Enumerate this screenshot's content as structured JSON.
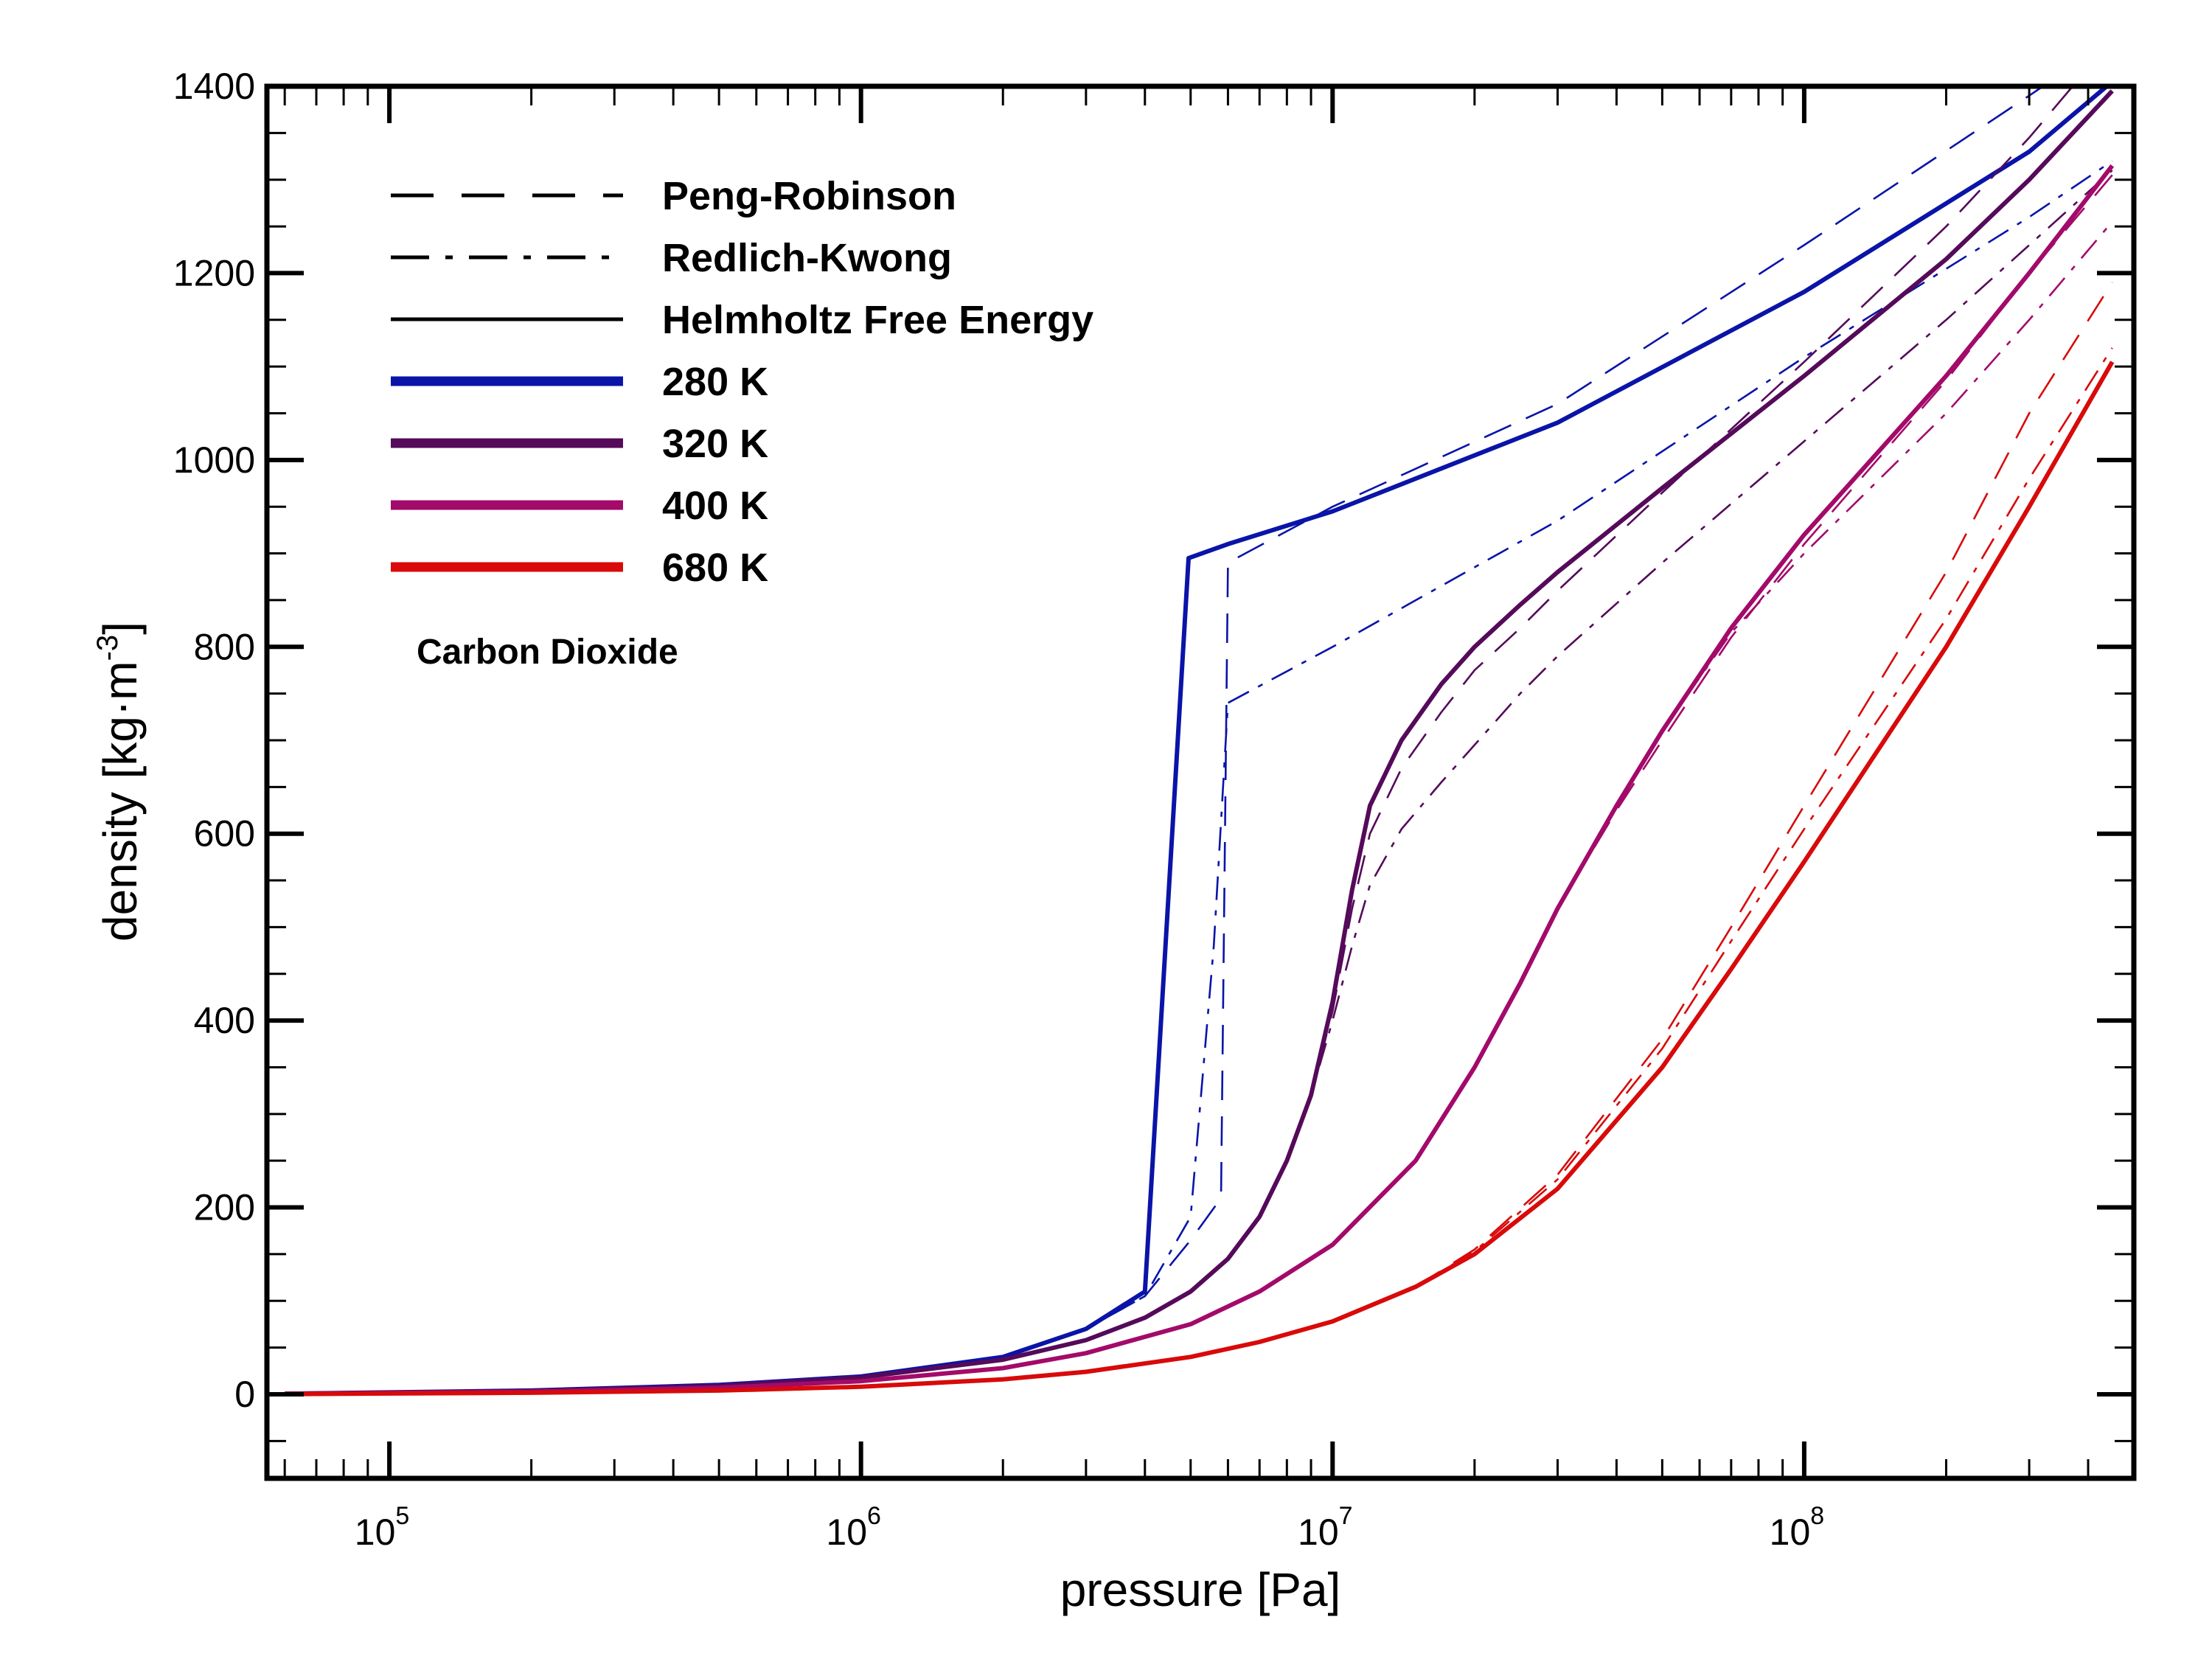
{
  "chart_data": {
    "type": "line",
    "xlabel": "pressure [Pa]",
    "ylabel_main": "density [kg·m",
    "ylabel_sup": "-3",
    "ylabel_close": "]",
    "x_scale": "log",
    "xlim": [
      55000,
      500000000
    ],
    "ylim": [
      -90,
      1400
    ],
    "x_ticks": [
      {
        "value": 100000,
        "base": "10",
        "exp": "5"
      },
      {
        "value": 1000000,
        "base": "10",
        "exp": "6"
      },
      {
        "value": 10000000,
        "base": "10",
        "exp": "7"
      },
      {
        "value": 100000000,
        "base": "10",
        "exp": "8"
      }
    ],
    "y_ticks": [
      {
        "value": 0,
        "label": "0"
      },
      {
        "value": 200,
        "label": "200"
      },
      {
        "value": 400,
        "label": "400"
      },
      {
        "value": 600,
        "label": "600"
      },
      {
        "value": 800,
        "label": "800"
      },
      {
        "value": 1000,
        "label": "1000"
      },
      {
        "value": 1200,
        "label": "1200"
      },
      {
        "value": 1400,
        "label": "1400"
      }
    ],
    "grid": false,
    "legend_position": "top-left",
    "legend": [
      {
        "label": "Peng-Robinson",
        "style": "dashed",
        "color": "#000000"
      },
      {
        "label": "Redlich-Kwong",
        "style": "dashdot",
        "color": "#000000"
      },
      {
        "label": "Helmholtz Free Energy",
        "style": "solid",
        "color": "#000000"
      },
      {
        "label": "280 K",
        "style": "thick",
        "color": "#0a14a8"
      },
      {
        "label": "320 K",
        "style": "thick",
        "color": "#550a5a"
      },
      {
        "label": "400 K",
        "style": "thick",
        "color": "#a30a6a"
      },
      {
        "label": "680 K",
        "style": "thick",
        "color": "#d80a0a"
      }
    ],
    "annotation": "Carbon Dioxide",
    "series": [
      {
        "temperature": "280 K",
        "model": "Helmholtz Free Energy",
        "style": "solid",
        "color": "#0a14a8",
        "x": [
          60000,
          100000,
          200000,
          500000,
          1000000,
          2000000,
          3000000,
          4000000,
          4950000,
          6000000,
          10000000,
          30000000,
          100000000,
          300000000,
          450000000
        ],
        "y": [
          0.5,
          2,
          4,
          10,
          19,
          40,
          70,
          110,
          895,
          910,
          945,
          1040,
          1180,
          1330,
          1405
        ]
      },
      {
        "temperature": "280 K",
        "model": "Peng-Robinson",
        "style": "dashed",
        "color": "#0a14a8",
        "x": [
          60000,
          100000,
          200000,
          500000,
          1000000,
          2000000,
          3000000,
          4000000,
          5000000,
          5800000,
          6000000,
          10000000,
          30000000,
          100000000,
          300000000,
          450000000
        ],
        "y": [
          0.5,
          2,
          4,
          10,
          19,
          40,
          70,
          105,
          165,
          210,
          890,
          950,
          1060,
          1230,
          1390,
          1450
        ]
      },
      {
        "temperature": "280 K",
        "model": "Redlich-Kwong",
        "style": "dashdot",
        "color": "#0a14a8",
        "x": [
          60000,
          100000,
          200000,
          500000,
          1000000,
          2000000,
          3000000,
          4000000,
          5000000,
          5600000,
          6000000,
          10000000,
          30000000,
          100000000,
          300000000,
          450000000
        ],
        "y": [
          0.5,
          2,
          4,
          10,
          19,
          40,
          70,
          105,
          190,
          480,
          740,
          800,
          935,
          1110,
          1260,
          1320
        ]
      },
      {
        "temperature": "320 K",
        "model": "Helmholtz Free Energy",
        "style": "solid",
        "color": "#550a5a",
        "x": [
          60000,
          100000,
          200000,
          500000,
          1000000,
          2000000,
          3000000,
          4000000,
          5000000,
          6000000,
          7000000,
          8000000,
          9000000,
          10000000,
          11000000,
          12000000,
          14000000,
          17000000,
          20000000,
          25000000,
          30000000,
          50000000,
          100000000,
          200000000,
          300000000,
          450000000
        ],
        "y": [
          0.5,
          1.7,
          3.5,
          9,
          18,
          37,
          58,
          82,
          110,
          145,
          190,
          250,
          320,
          420,
          540,
          630,
          700,
          760,
          800,
          845,
          880,
          970,
          1090,
          1215,
          1300,
          1395
        ]
      },
      {
        "temperature": "320 K",
        "model": "Peng-Robinson",
        "style": "dashed",
        "color": "#550a5a",
        "x": [
          60000,
          100000,
          200000,
          500000,
          1000000,
          2000000,
          3000000,
          4000000,
          5000000,
          6000000,
          7000000,
          8000000,
          9000000,
          10000000,
          11000000,
          12000000,
          14000000,
          17000000,
          20000000,
          25000000,
          30000000,
          50000000,
          100000000,
          200000000,
          300000000,
          450000000
        ],
        "y": [
          0.5,
          1.7,
          3.5,
          9,
          18,
          37,
          58,
          82,
          110,
          145,
          190,
          250,
          320,
          410,
          520,
          600,
          670,
          730,
          775,
          820,
          860,
          965,
          1105,
          1250,
          1345,
          1450
        ]
      },
      {
        "temperature": "320 K",
        "model": "Redlich-Kwong",
        "style": "dashdot",
        "color": "#550a5a",
        "x": [
          60000,
          100000,
          200000,
          500000,
          1000000,
          2000000,
          3000000,
          4000000,
          5000000,
          6000000,
          7000000,
          8000000,
          9000000,
          10000000,
          11000000,
          12000000,
          14000000,
          17000000,
          20000000,
          25000000,
          30000000,
          50000000,
          100000000,
          200000000,
          300000000,
          450000000
        ],
        "y": [
          0.5,
          1.7,
          3.5,
          9,
          18,
          37,
          58,
          82,
          110,
          145,
          190,
          250,
          320,
          400,
          480,
          545,
          605,
          655,
          695,
          750,
          790,
          890,
          1020,
          1150,
          1230,
          1310
        ]
      },
      {
        "temperature": "400 K",
        "model": "Helmholtz Free Energy",
        "style": "solid",
        "color": "#a30a6a",
        "x": [
          60000,
          100000,
          200000,
          500000,
          1000000,
          2000000,
          3000000,
          5000000,
          7000000,
          10000000,
          15000000,
          20000000,
          25000000,
          30000000,
          40000000,
          50000000,
          70000000,
          100000000,
          200000000,
          300000000,
          450000000
        ],
        "y": [
          0.4,
          1.3,
          2.7,
          7,
          14,
          28,
          44,
          75,
          110,
          160,
          250,
          350,
          440,
          520,
          630,
          710,
          820,
          920,
          1090,
          1200,
          1315
        ]
      },
      {
        "temperature": "400 K",
        "model": "Peng-Robinson",
        "style": "dashed",
        "color": "#a30a6a",
        "x": [
          60000,
          100000,
          200000,
          500000,
          1000000,
          2000000,
          3000000,
          5000000,
          7000000,
          10000000,
          15000000,
          20000000,
          25000000,
          30000000,
          40000000,
          50000000,
          70000000,
          100000000,
          200000000,
          300000000,
          450000000
        ],
        "y": [
          0.4,
          1.3,
          2.7,
          7,
          14,
          28,
          44,
          75,
          110,
          160,
          250,
          350,
          440,
          520,
          625,
          700,
          810,
          910,
          1085,
          1200,
          1305
        ]
      },
      {
        "temperature": "400 K",
        "model": "Redlich-Kwong",
        "style": "dashdot",
        "color": "#a30a6a",
        "x": [
          60000,
          100000,
          200000,
          500000,
          1000000,
          2000000,
          3000000,
          5000000,
          7000000,
          10000000,
          15000000,
          20000000,
          25000000,
          30000000,
          40000000,
          50000000,
          70000000,
          100000000,
          200000000,
          300000000,
          450000000
        ],
        "y": [
          0.4,
          1.3,
          2.7,
          7,
          14,
          28,
          44,
          75,
          110,
          160,
          250,
          350,
          440,
          520,
          630,
          710,
          815,
          900,
          1050,
          1150,
          1255
        ]
      },
      {
        "temperature": "680 K",
        "model": "Helmholtz Free Energy",
        "style": "solid",
        "color": "#d80a0a",
        "x": [
          60000,
          100000,
          200000,
          500000,
          1000000,
          2000000,
          3000000,
          5000000,
          7000000,
          10000000,
          15000000,
          20000000,
          30000000,
          50000000,
          70000000,
          100000000,
          200000000,
          300000000,
          450000000
        ],
        "y": [
          0.2,
          0.8,
          1.6,
          4,
          8,
          16,
          24,
          40,
          56,
          78,
          115,
          150,
          220,
          350,
          455,
          570,
          800,
          950,
          1105
        ]
      },
      {
        "temperature": "680 K",
        "model": "Peng-Robinson",
        "style": "dashed",
        "color": "#d80a0a",
        "x": [
          60000,
          100000,
          200000,
          500000,
          1000000,
          2000000,
          3000000,
          5000000,
          7000000,
          10000000,
          15000000,
          20000000,
          30000000,
          50000000,
          70000000,
          100000000,
          200000000,
          300000000,
          450000000
        ],
        "y": [
          0.2,
          0.8,
          1.6,
          4,
          8,
          16,
          24,
          40,
          56,
          78,
          115,
          155,
          235,
          380,
          500,
          630,
          880,
          1050,
          1190
        ]
      },
      {
        "temperature": "680 K",
        "model": "Redlich-Kwong",
        "style": "dashdot",
        "color": "#d80a0a",
        "x": [
          60000,
          100000,
          200000,
          500000,
          1000000,
          2000000,
          3000000,
          5000000,
          7000000,
          10000000,
          15000000,
          20000000,
          30000000,
          50000000,
          70000000,
          100000000,
          200000000,
          300000000,
          450000000
        ],
        "y": [
          0.2,
          0.8,
          1.6,
          4,
          8,
          16,
          24,
          40,
          56,
          78,
          115,
          153,
          230,
          370,
          485,
          605,
          830,
          980,
          1120
        ]
      }
    ]
  }
}
